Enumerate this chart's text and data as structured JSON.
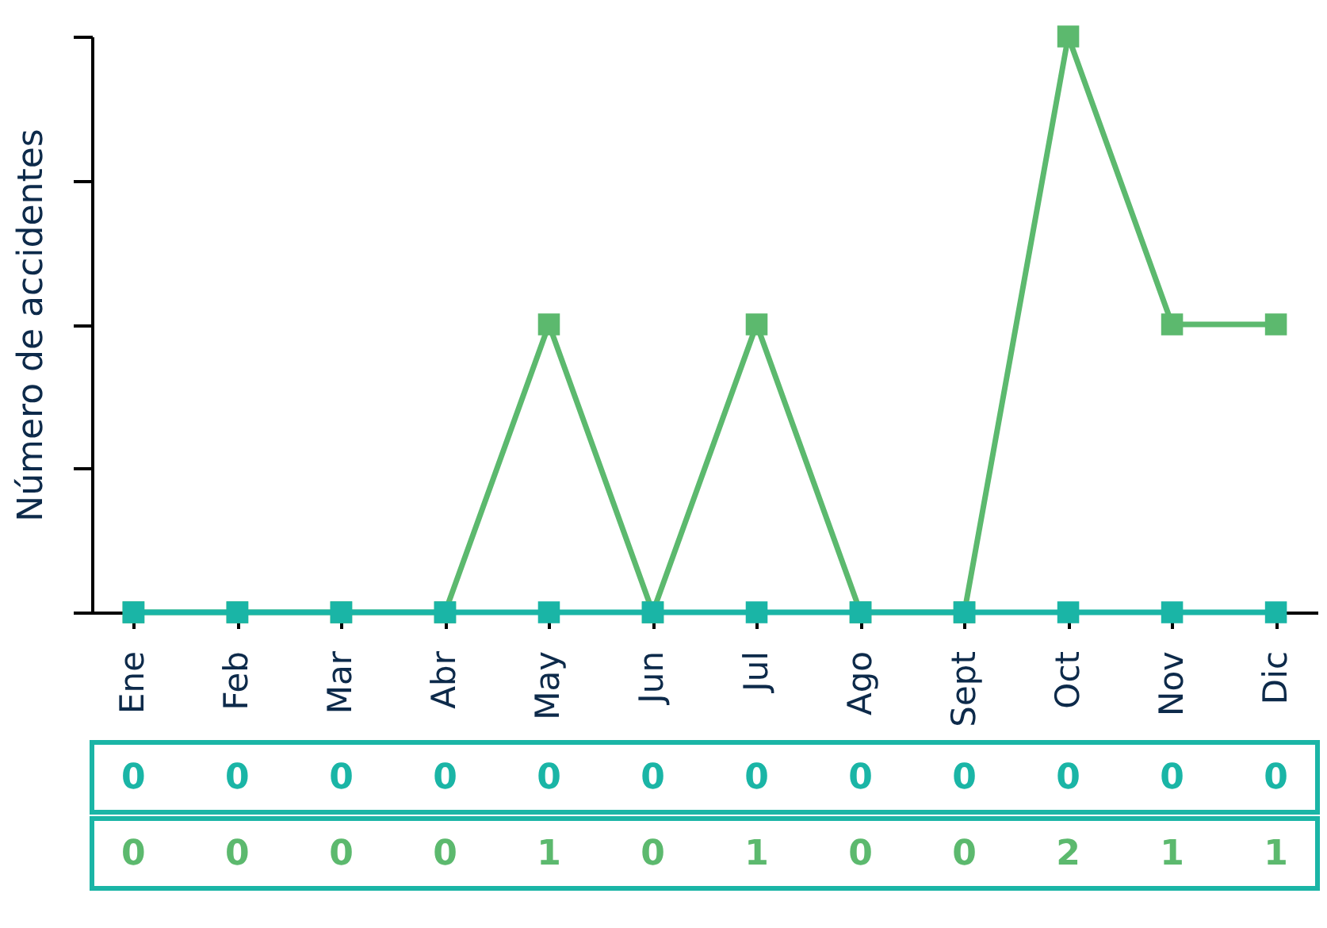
{
  "chart_data": {
    "type": "line",
    "ylabel": "Número de accidentes",
    "categories": [
      "Ene",
      "Feb",
      "Mar",
      "Abr",
      "May",
      "Jun",
      "Jul",
      "Ago",
      "Sept",
      "Oct",
      "Nov",
      "Dic"
    ],
    "series": [
      {
        "color": "#1ab5a6",
        "values": [
          0,
          0,
          0,
          0,
          0,
          0,
          0,
          0,
          0,
          0,
          0,
          0
        ]
      },
      {
        "color": "#5cb96e",
        "values": [
          0,
          0,
          0,
          0,
          1,
          0,
          1,
          0,
          0,
          2,
          1,
          1
        ]
      }
    ],
    "ylim": [
      0,
      2
    ],
    "yticks": [
      {
        "value": 0,
        "label": null
      },
      {
        "value": 0.5,
        "label": null
      },
      {
        "value": 1,
        "label": null
      },
      {
        "value": 1.5,
        "label": null
      },
      {
        "value": 2,
        "label": null
      }
    ],
    "tick_labels": "x",
    "grid": false,
    "marker": "square",
    "line_style": "solid",
    "data_labels": true
  }
}
